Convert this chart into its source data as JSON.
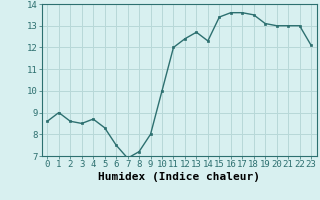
{
  "x": [
    0,
    1,
    2,
    3,
    4,
    5,
    6,
    7,
    8,
    9,
    10,
    11,
    12,
    13,
    14,
    15,
    16,
    17,
    18,
    19,
    20,
    21,
    22,
    23
  ],
  "y": [
    8.6,
    9.0,
    8.6,
    8.5,
    8.7,
    8.3,
    7.5,
    6.9,
    7.2,
    8.0,
    10.0,
    12.0,
    12.4,
    12.7,
    12.3,
    13.4,
    13.6,
    13.6,
    13.5,
    13.1,
    13.0,
    13.0,
    13.0,
    12.1
  ],
  "xlabel": "Humidex (Indice chaleur)",
  "xlim_min": -0.5,
  "xlim_max": 23.5,
  "ylim_min": 7,
  "ylim_max": 14,
  "yticks": [
    7,
    8,
    9,
    10,
    11,
    12,
    13,
    14
  ],
  "xticks": [
    0,
    1,
    2,
    3,
    4,
    5,
    6,
    7,
    8,
    9,
    10,
    11,
    12,
    13,
    14,
    15,
    16,
    17,
    18,
    19,
    20,
    21,
    22,
    23
  ],
  "line_color": "#2d7070",
  "marker_color": "#2d7070",
  "bg_color": "#d8f0f0",
  "grid_color": "#b8d8d8",
  "tick_label_fontsize": 6.5,
  "xlabel_fontsize": 8
}
